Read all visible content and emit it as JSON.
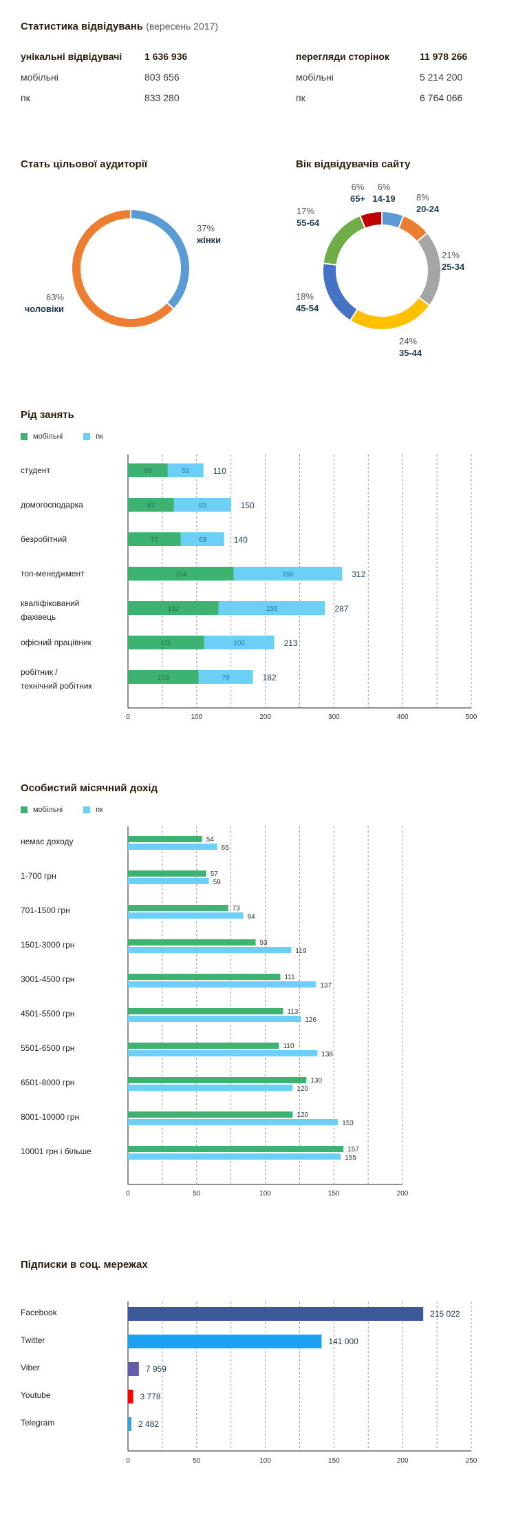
{
  "stats": {
    "title": "Статистика відвідувань",
    "subtitle": "(вересень 2017)",
    "left": [
      {
        "label": "унікальні відвідувачі",
        "value": "1 636 936",
        "bold": true
      },
      {
        "label": "мобільні",
        "value": "803 656",
        "bold": false
      },
      {
        "label": "пк",
        "value": "833 280",
        "bold": false
      }
    ],
    "right": [
      {
        "label": "перегляди сторінок",
        "value": "11 978 266",
        "bold": true
      },
      {
        "label": "мобільні",
        "value": "5 214 200",
        "bold": false
      },
      {
        "label": "пк",
        "value": "6 764 066",
        "bold": false
      }
    ]
  },
  "colors": {
    "mobile": "#3cb371",
    "pc": "#6ccff6",
    "title": "#2b1d0e",
    "value_text": "#1f3b4d",
    "facebook": "#3b5998",
    "twitter": "#1da1f2",
    "viber": "#665cac",
    "youtube": "#ff0000",
    "telegram": "#2ca5e0"
  },
  "legend": {
    "mobile": "мобільні",
    "pc": "пк"
  },
  "chart_data": [
    {
      "type": "pie",
      "title": "Стать цільової аудиторії",
      "slices": [
        {
          "label": "жінки",
          "pct_label": "37%",
          "value": 37,
          "color": "#5b9bd5"
        },
        {
          "label": "чоловіки",
          "pct_label": "63%",
          "value": 63,
          "color": "#ed7d31"
        }
      ]
    },
    {
      "type": "pie",
      "title": "Вік відвідувачів сайту",
      "slices": [
        {
          "label": "14-19",
          "pct_label": "6%",
          "value": 6,
          "color": "#5b9bd5"
        },
        {
          "label": "20-24",
          "pct_label": "8%",
          "value": 8,
          "color": "#ed7d31"
        },
        {
          "label": "25-34",
          "pct_label": "21%",
          "value": 21,
          "color": "#a5a5a5"
        },
        {
          "label": "35-44",
          "pct_label": "24%",
          "value": 24,
          "color": "#ffc000"
        },
        {
          "label": "45-54",
          "pct_label": "18%",
          "value": 18,
          "color": "#4472c4"
        },
        {
          "label": "55-64",
          "pct_label": "17%",
          "value": 17,
          "color": "#70ad47"
        },
        {
          "label": "65+",
          "pct_label": "6%",
          "value": 6,
          "color": "#c00000"
        }
      ]
    },
    {
      "type": "bar",
      "orientation": "horizontal-stacked",
      "title": "Рід занять",
      "categories": [
        [
          "студент"
        ],
        [
          "домогосподарка"
        ],
        [
          "безробітний"
        ],
        [
          "топ-менеджмент"
        ],
        [
          "кваліфікований",
          "фахівець"
        ],
        [
          "офісний працівник"
        ],
        [
          "робітник /",
          "технічний робітник"
        ]
      ],
      "series": [
        {
          "name": "мобільні",
          "values": [
            58,
            67,
            77,
            154,
            132,
            111,
            103
          ]
        },
        {
          "name": "пк",
          "values": [
            52,
            83,
            63,
            158,
            155,
            102,
            79
          ]
        }
      ],
      "totals": [
        110,
        150,
        140,
        312,
        287,
        213,
        182
      ],
      "xlim": [
        0,
        500
      ],
      "xticks": [
        0,
        100,
        200,
        300,
        400,
        500
      ],
      "grid": "vertical-dashed"
    },
    {
      "type": "bar",
      "orientation": "horizontal-grouped",
      "title": "Особистий місячний дохід",
      "categories": [
        "немає доходу",
        "1-700 грн",
        "701-1500 грн",
        "1501-3000 грн",
        "3001-4500 грн",
        "4501-5500 грн",
        "5501-6500 грн",
        "6501-8000 грн",
        "8001-10000 грн",
        "10001 грн і більше"
      ],
      "series": [
        {
          "name": "мобільні",
          "values": [
            54,
            57,
            73,
            93,
            111,
            113,
            110,
            130,
            120,
            157
          ]
        },
        {
          "name": "пк",
          "values": [
            65,
            59,
            84,
            119,
            137,
            126,
            138,
            120,
            153,
            155
          ]
        }
      ],
      "xlim": [
        0,
        200
      ],
      "xticks": [
        0,
        50,
        100,
        150,
        200
      ],
      "grid": "vertical-dashed"
    },
    {
      "type": "bar",
      "orientation": "horizontal",
      "title": "Підписки в соц. мережах",
      "categories": [
        "Facebook",
        "Twitter",
        "Viber",
        "Youtube",
        "Telegram"
      ],
      "values": [
        215022,
        141000,
        7959,
        3778,
        2482
      ],
      "value_labels": [
        "215 022",
        "141 000",
        "7 959",
        "3 778",
        "2 482"
      ],
      "colors": [
        "#3b5998",
        "#1da1f2",
        "#665cac",
        "#ff0000",
        "#2ca5e0"
      ],
      "xlim": [
        0,
        250
      ],
      "xlim_scale": 1000,
      "xticks": [
        0,
        50,
        100,
        150,
        200,
        250
      ],
      "grid": "vertical-dashed"
    }
  ]
}
